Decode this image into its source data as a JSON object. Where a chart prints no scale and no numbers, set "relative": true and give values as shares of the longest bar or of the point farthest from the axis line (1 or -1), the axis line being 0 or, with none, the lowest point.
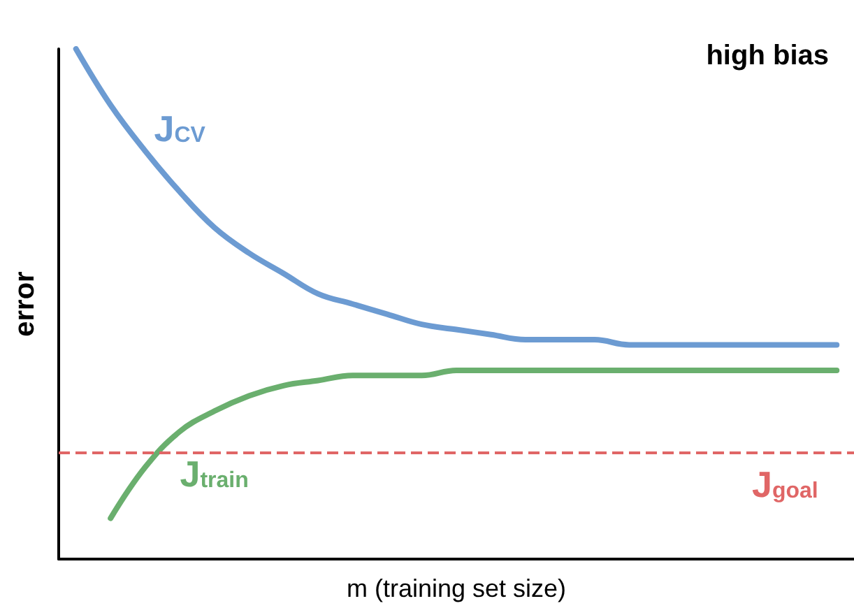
{
  "chart_data": {
    "type": "line",
    "relative": true,
    "xlabel": "m (training set size)",
    "ylabel": "error",
    "annotations": [
      "high bias"
    ],
    "categories": [
      null,
      null,
      null,
      null,
      null,
      null,
      null,
      null,
      null,
      null,
      null,
      null,
      null,
      null,
      null,
      null,
      null,
      null,
      null,
      null,
      null,
      null,
      null
    ],
    "series": [
      {
        "name": "J$_{CV}$",
        "color": "#6c9bd2",
        "values": [
          1.0,
          0.89,
          0.8,
          0.72,
          0.65,
          0.6,
          0.56,
          0.52,
          0.5,
          0.48,
          0.46,
          0.45,
          0.44,
          0.43,
          0.43,
          0.43,
          0.42,
          0.42,
          0.42,
          0.42,
          0.42,
          0.42,
          0.42
        ]
      },
      {
        "name": "J$_{train}$",
        "color": "#6aaf6e",
        "values": [
          null,
          0.08,
          0.18,
          0.25,
          0.29,
          0.32,
          0.34,
          0.35,
          0.36,
          0.36,
          0.36,
          0.37,
          0.37,
          0.37,
          0.37,
          0.37,
          0.37,
          0.37,
          0.37,
          0.37,
          0.37,
          0.37,
          0.37
        ]
      }
    ],
    "ref_lines": [
      {
        "axis": "y",
        "value": 0.21,
        "label": "J$_{goal}$",
        "color": "#e06666",
        "line_style": "dashed"
      }
    ],
    "grid": false,
    "legend": false,
    "marker": "none",
    "line_style": "solid"
  }
}
